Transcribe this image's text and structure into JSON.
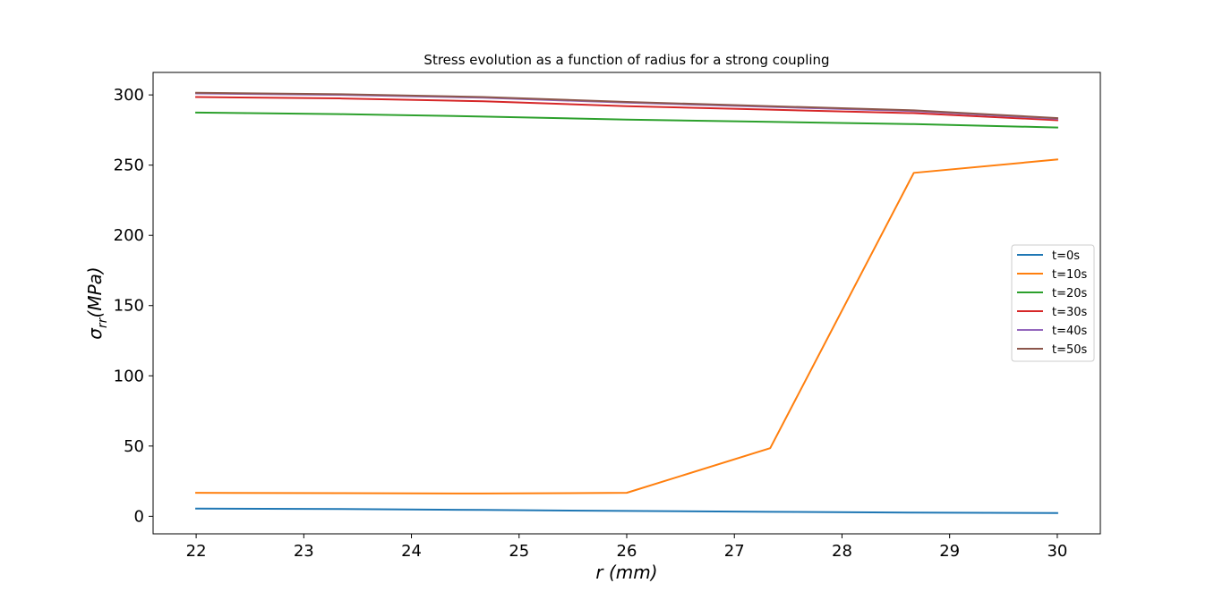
{
  "chart_data": {
    "type": "line",
    "title": "Stress evolution as a function of radius for a strong coupling",
    "xlabel": "r (mm)",
    "ylabel_symbol": "σ",
    "ylabel_sub": "rr",
    "ylabel_unit": "(MPa)",
    "xlim": [
      21.6,
      30.4
    ],
    "ylim": [
      -12.5,
      316
    ],
    "xticks": [
      22,
      23,
      24,
      25,
      26,
      27,
      28,
      29,
      30
    ],
    "yticks": [
      0,
      50,
      100,
      150,
      200,
      250,
      300
    ],
    "grid": false,
    "legend_position": "center-right",
    "x": [
      22,
      23.333,
      24.667,
      26,
      27.333,
      28.667,
      30
    ],
    "series": [
      {
        "name": "t=0s",
        "color": "#1f77b4",
        "values": [
          5.5,
          5.2,
          4.5,
          3.8,
          3.2,
          2.6,
          2.3
        ]
      },
      {
        "name": "t=10s",
        "color": "#ff7f0e",
        "values": [
          16.7,
          16.5,
          16.2,
          16.7,
          48.5,
          244.5,
          254.0
        ]
      },
      {
        "name": "t=20s",
        "color": "#2ca02c",
        "values": [
          287.4,
          286.3,
          284.6,
          282.4,
          280.8,
          279.2,
          276.8
        ]
      },
      {
        "name": "t=30s",
        "color": "#d62728",
        "values": [
          298.5,
          297.5,
          295.5,
          292.0,
          289.5,
          287.0,
          282.0
        ]
      },
      {
        "name": "t=40s",
        "color": "#9467bd",
        "values": [
          301.0,
          300.0,
          298.0,
          294.5,
          291.5,
          288.5,
          283.0
        ]
      },
      {
        "name": "t=50s",
        "color": "#8c564b",
        "values": [
          301.5,
          300.5,
          298.5,
          295.0,
          292.0,
          289.0,
          283.5
        ]
      }
    ]
  }
}
